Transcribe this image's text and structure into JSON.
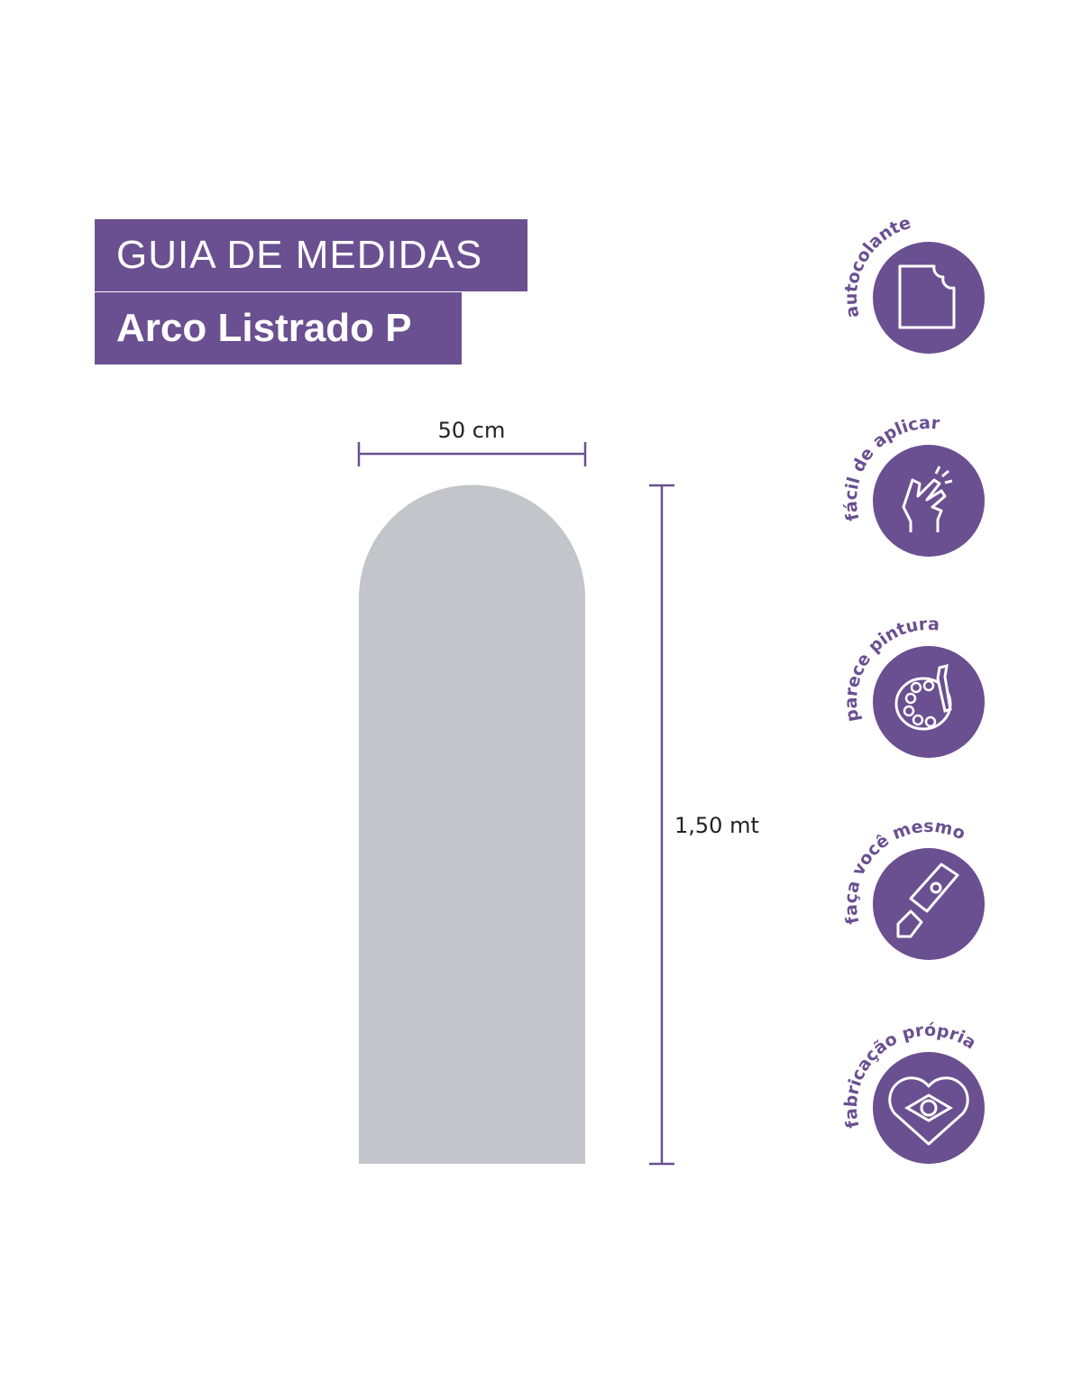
{
  "header": {
    "title": "GUIA DE MEDIDAS",
    "product_name": "Arco Listrado P"
  },
  "dimensions": {
    "width_label": "50 cm",
    "height_label": "1,50 mt"
  },
  "colors": {
    "accent": "#6a4f91",
    "shape": "#c4c5ca"
  },
  "features": [
    {
      "label": "autocolante",
      "icon": "peeling-sticker-icon"
    },
    {
      "label": "fácil de aplicar",
      "icon": "finger-snap-icon"
    },
    {
      "label": "parece pintura",
      "icon": "paint-palette-icon"
    },
    {
      "label": "faça você mesmo",
      "icon": "utility-knife-icon"
    },
    {
      "label": "fabricação própria",
      "icon": "heart-brazil-flag-icon"
    }
  ]
}
